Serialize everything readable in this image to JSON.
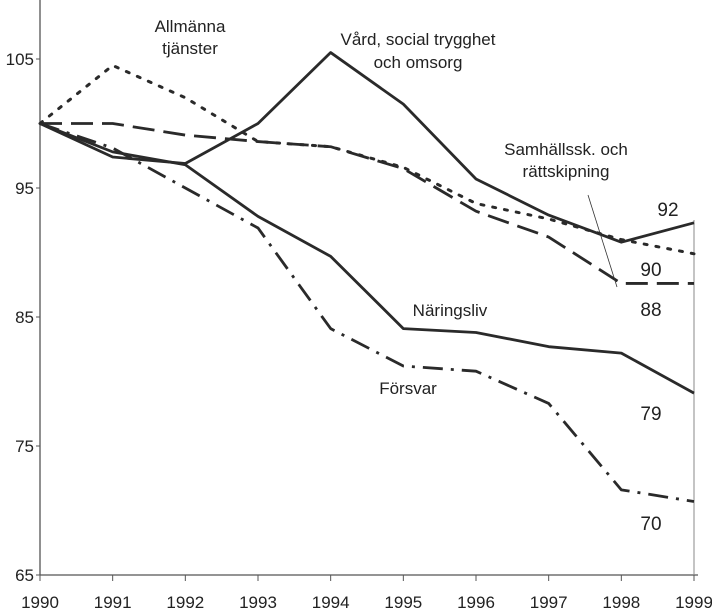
{
  "chart_data": {
    "type": "line",
    "title": "",
    "xlabel": "",
    "ylabel": "",
    "x": [
      1990,
      1991,
      1992,
      1993,
      1994,
      1995,
      1996,
      1997,
      1998,
      1999
    ],
    "x_tick_labels": [
      "1990",
      "1991",
      "1992",
      "1993",
      "1994",
      "1995",
      "1996",
      "1997",
      "1998",
      "1999"
    ],
    "ylim": [
      65,
      109
    ],
    "y_ticks": [
      65,
      75,
      85,
      95,
      105
    ],
    "y_tick_labels": [
      "65",
      "75",
      "85",
      "95",
      "105"
    ],
    "grid": false,
    "series": [
      {
        "name": "Allmänna tjänster",
        "label_lines": [
          "Allmänna",
          "tjänster"
        ],
        "style": "dotted",
        "end_label": "90",
        "values": [
          100,
          104.5,
          102,
          98.6,
          98.2,
          96.6,
          93.8,
          92.6,
          91,
          89.9
        ]
      },
      {
        "name": "Vård, social trygghet och omsorg",
        "label_lines": [
          "Vård, social trygghet",
          "och omsorg"
        ],
        "style": "solid",
        "end_label": "92",
        "values": [
          100,
          97.4,
          96.9,
          100,
          105.5,
          101.5,
          95.7,
          92.9,
          90.8,
          92.3
        ]
      },
      {
        "name": "Samhällssk. och rättskipning",
        "label_lines": [
          "Samhällssk. och",
          "rättskipning"
        ],
        "style": "dashed",
        "end_label": "88",
        "values": [
          100,
          100,
          99.1,
          98.6,
          98.2,
          96.5,
          93.2,
          91.2,
          87.6,
          87.6
        ]
      },
      {
        "name": "Näringsliv",
        "label_lines": [
          "Näringsliv"
        ],
        "style": "solid",
        "end_label": "79",
        "values": [
          100,
          97.8,
          96.8,
          92.8,
          89.7,
          84.1,
          83.8,
          82.7,
          82.2,
          79.1
        ]
      },
      {
        "name": "Försvar",
        "label_lines": [
          "Försvar"
        ],
        "style": "dashdot",
        "end_label": "70",
        "values": [
          100,
          98.1,
          95,
          91.9,
          84.1,
          81.2,
          80.8,
          78.3,
          71.6,
          70.7
        ]
      }
    ]
  }
}
